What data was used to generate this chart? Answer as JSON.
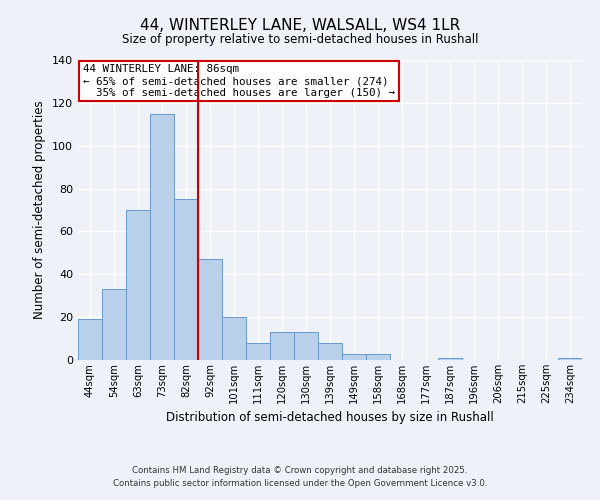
{
  "title": "44, WINTERLEY LANE, WALSALL, WS4 1LR",
  "subtitle": "Size of property relative to semi-detached houses in Rushall",
  "xlabel": "Distribution of semi-detached houses by size in Rushall",
  "ylabel": "Number of semi-detached properties",
  "bin_labels": [
    "44sqm",
    "54sqm",
    "63sqm",
    "73sqm",
    "82sqm",
    "92sqm",
    "101sqm",
    "111sqm",
    "120sqm",
    "130sqm",
    "139sqm",
    "149sqm",
    "158sqm",
    "168sqm",
    "177sqm",
    "187sqm",
    "196sqm",
    "206sqm",
    "215sqm",
    "225sqm",
    "234sqm"
  ],
  "bar_heights": [
    19,
    33,
    70,
    115,
    75,
    47,
    20,
    8,
    13,
    13,
    8,
    3,
    3,
    0,
    0,
    1,
    0,
    0,
    0,
    0,
    1
  ],
  "bar_color": "#b8d0ea",
  "bar_edge_color": "#6699cc",
  "vline_x_index": 4,
  "vline_color": "#cc0000",
  "annotation_text": "44 WINTERLEY LANE: 86sqm\n← 65% of semi-detached houses are smaller (274)\n  35% of semi-detached houses are larger (150) →",
  "annotation_box_color": "#ffffff",
  "annotation_box_edge": "#cc0000",
  "ylim": [
    0,
    140
  ],
  "yticks": [
    0,
    20,
    40,
    60,
    80,
    100,
    120,
    140
  ],
  "footer_line1": "Contains HM Land Registry data © Crown copyright and database right 2025.",
  "footer_line2": "Contains public sector information licensed under the Open Government Licence v3.0.",
  "background_color": "#eef2f8"
}
